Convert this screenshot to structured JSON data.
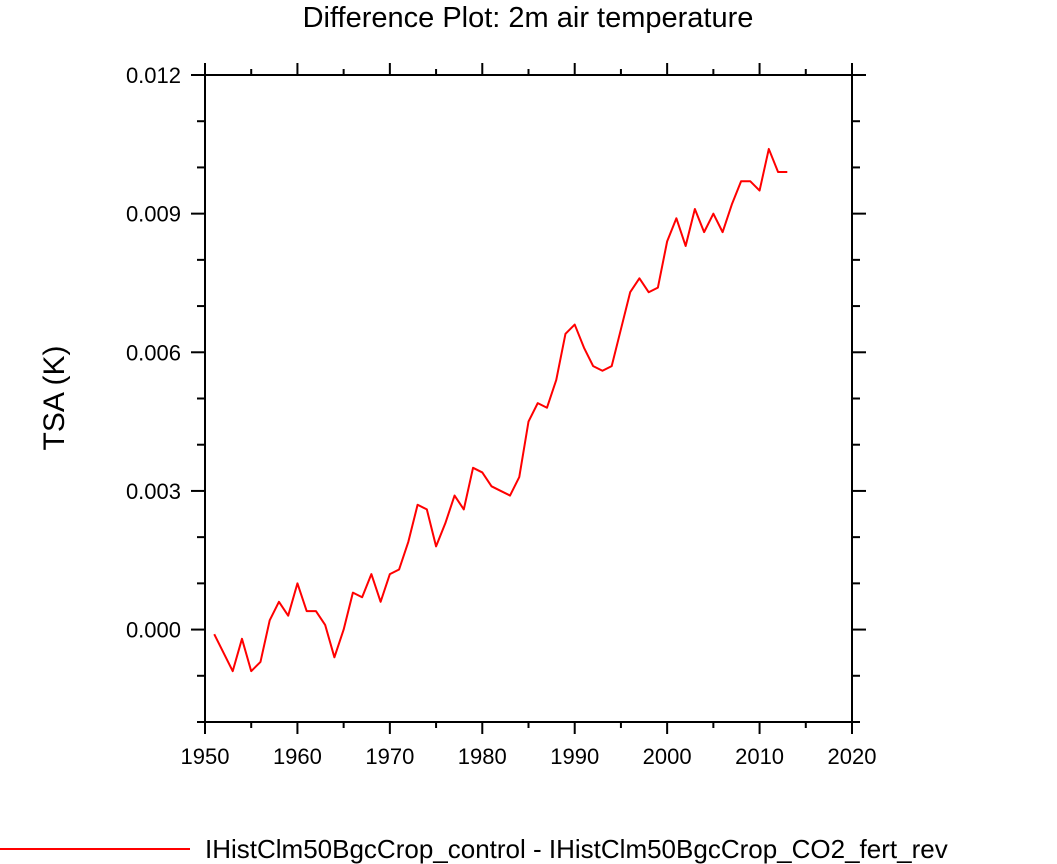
{
  "chart_data": {
    "type": "line",
    "title": "Difference Plot: 2m air temperature",
    "xlabel": "",
    "ylabel": "TSA  (K)",
    "xlim": [
      1950,
      2020
    ],
    "ylim": [
      -0.002,
      0.012
    ],
    "xticks": [
      1950,
      1960,
      1970,
      1980,
      1990,
      2000,
      2010,
      2020
    ],
    "xtick_labels": [
      "1950",
      "1960",
      "1970",
      "1980",
      "1990",
      "2000",
      "2010",
      "2020"
    ],
    "yticks": [
      0.0,
      0.003,
      0.006,
      0.009,
      0.012
    ],
    "ytick_labels": [
      "0.000",
      "0.003",
      "0.006",
      "0.009",
      "0.012"
    ],
    "grid": false,
    "legend_position": "bottom",
    "series": [
      {
        "name": "IHistClm50BgcCrop_control - IHistClm50BgcCrop_CO2_fert_rev",
        "color": "#ff0000",
        "x": [
          1951,
          1952,
          1953,
          1954,
          1955,
          1956,
          1957,
          1958,
          1959,
          1960,
          1961,
          1962,
          1963,
          1964,
          1965,
          1966,
          1967,
          1968,
          1969,
          1970,
          1971,
          1972,
          1973,
          1974,
          1975,
          1976,
          1977,
          1978,
          1979,
          1980,
          1981,
          1982,
          1983,
          1984,
          1985,
          1986,
          1987,
          1988,
          1989,
          1990,
          1991,
          1992,
          1993,
          1994,
          1995,
          1996,
          1997,
          1998,
          1999,
          2000,
          2001,
          2002,
          2003,
          2004,
          2005,
          2006,
          2007,
          2008,
          2009,
          2010,
          2011,
          2012,
          2013
        ],
        "y": [
          -0.0001,
          -0.0005,
          -0.0009,
          -0.0002,
          -0.0009,
          -0.0007,
          0.0002,
          0.0006,
          0.0003,
          0.001,
          0.0004,
          0.0004,
          0.0001,
          -0.0006,
          0.0,
          0.0008,
          0.0007,
          0.0012,
          0.0006,
          0.0012,
          0.0013,
          0.0019,
          0.0027,
          0.0026,
          0.0018,
          0.0023,
          0.0029,
          0.0026,
          0.0035,
          0.0034,
          0.0031,
          0.003,
          0.0029,
          0.0033,
          0.0045,
          0.0049,
          0.0048,
          0.0054,
          0.0064,
          0.0066,
          0.0061,
          0.0057,
          0.0056,
          0.0057,
          0.0065,
          0.0073,
          0.0076,
          0.0073,
          0.0074,
          0.0084,
          0.0089,
          0.0083,
          0.0091,
          0.0086,
          0.009,
          0.0086,
          0.0092,
          0.0097,
          0.0097,
          0.0095,
          0.0104,
          0.0099,
          0.0099
        ]
      }
    ]
  }
}
